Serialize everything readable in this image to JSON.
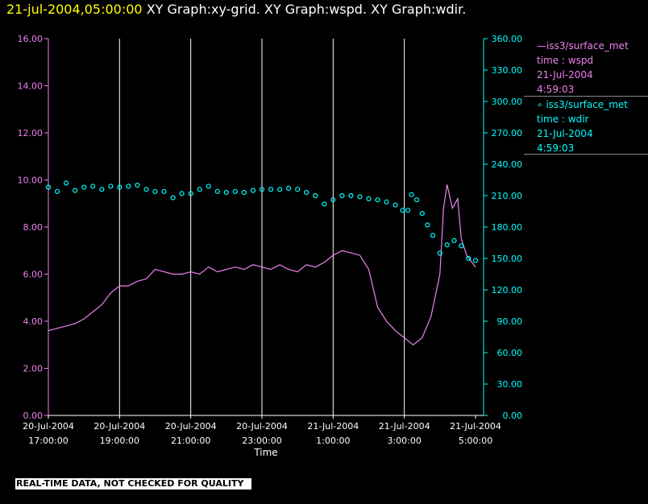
{
  "header": {
    "timestamp": "21-jul-2004,05:00:00",
    "graphs": "XY Graph:xy-grid.  XY Graph:wspd.  XY Graph:wdir."
  },
  "legend": {
    "series1": {
      "name": "iss3/surface_met",
      "line1": "time : wspd",
      "line2": "21-Jul-2004",
      "line3": "4:59:03"
    },
    "series2": {
      "name": "iss3/surface_met",
      "line1": "time : wdir",
      "line2": "21-Jul-2004",
      "line3": "4:59:03"
    }
  },
  "notice": "REAL-TIME DATA, NOT CHECKED FOR QUALITY",
  "colors": {
    "wspd": "#ee82ee",
    "wdir": "#00ffff",
    "grid": "#ffffff",
    "title_timestamp": "#ffff00"
  },
  "chart_data": {
    "type": "line",
    "xlabel": "Time",
    "x_tick_labels": [
      [
        "20-Jul-2004",
        "17:00:00"
      ],
      [
        "20-Jul-2004",
        "19:00:00"
      ],
      [
        "20-Jul-2004",
        "21:00:00"
      ],
      [
        "20-Jul-2004",
        "23:00:00"
      ],
      [
        "21-Jul-2004",
        "1:00:00"
      ],
      [
        "21-Jul-2004",
        "3:00:00"
      ],
      [
        "21-Jul-2004",
        "5:00:00"
      ]
    ],
    "xlim_hours": [
      17,
      29
    ],
    "y_left": {
      "ylim": [
        0,
        16
      ],
      "ticks": [
        "0.00",
        "2.00",
        "4.00",
        "6.00",
        "8.00",
        "10.00",
        "12.00",
        "14.00",
        "16.00"
      ]
    },
    "y_right": {
      "ylim": [
        0,
        360
      ],
      "ticks": [
        "0.00",
        "30.00",
        "60.00",
        "90.00",
        "120.00",
        "150.00",
        "180.00",
        "210.00",
        "240.00",
        "270.00",
        "300.00",
        "330.00",
        "360.00"
      ]
    },
    "grid": "vertical lines at each 2-hour tick",
    "series": [
      {
        "name": "iss3/surface_met time : wspd",
        "style": "line",
        "axis": "left",
        "points": [
          [
            17.0,
            3.6
          ],
          [
            17.25,
            3.7
          ],
          [
            17.5,
            3.8
          ],
          [
            17.75,
            3.9
          ],
          [
            18.0,
            4.1
          ],
          [
            18.25,
            4.4
          ],
          [
            18.5,
            4.7
          ],
          [
            18.75,
            5.2
          ],
          [
            19.0,
            5.5
          ],
          [
            19.25,
            5.5
          ],
          [
            19.5,
            5.7
          ],
          [
            19.75,
            5.8
          ],
          [
            20.0,
            6.2
          ],
          [
            20.25,
            6.1
          ],
          [
            20.5,
            6.0
          ],
          [
            20.75,
            6.0
          ],
          [
            21.0,
            6.1
          ],
          [
            21.25,
            6.0
          ],
          [
            21.5,
            6.3
          ],
          [
            21.75,
            6.1
          ],
          [
            22.0,
            6.2
          ],
          [
            22.25,
            6.3
          ],
          [
            22.5,
            6.2
          ],
          [
            22.75,
            6.4
          ],
          [
            23.0,
            6.3
          ],
          [
            23.25,
            6.2
          ],
          [
            23.5,
            6.4
          ],
          [
            23.75,
            6.2
          ],
          [
            24.0,
            6.1
          ],
          [
            24.25,
            6.4
          ],
          [
            24.5,
            6.3
          ],
          [
            24.75,
            6.5
          ],
          [
            25.0,
            6.8
          ],
          [
            25.25,
            7.0
          ],
          [
            25.5,
            6.9
          ],
          [
            25.75,
            6.8
          ],
          [
            26.0,
            6.2
          ],
          [
            26.25,
            4.6
          ],
          [
            26.5,
            4.0
          ],
          [
            26.75,
            3.6
          ],
          [
            27.0,
            3.3
          ],
          [
            27.25,
            3.0
          ],
          [
            27.5,
            3.3
          ],
          [
            27.75,
            4.2
          ],
          [
            28.0,
            6.0
          ],
          [
            28.1,
            8.8
          ],
          [
            28.2,
            9.8
          ],
          [
            28.35,
            8.8
          ],
          [
            28.5,
            9.2
          ],
          [
            28.6,
            7.5
          ],
          [
            28.75,
            6.8
          ],
          [
            28.9,
            6.5
          ],
          [
            29.0,
            6.3
          ]
        ]
      },
      {
        "name": "iss3/surface_met time : wdir",
        "style": "markers",
        "axis": "right",
        "points": [
          [
            17.0,
            218
          ],
          [
            17.25,
            214
          ],
          [
            17.5,
            222
          ],
          [
            17.75,
            215
          ],
          [
            18.0,
            218
          ],
          [
            18.25,
            219
          ],
          [
            18.5,
            216
          ],
          [
            18.75,
            219
          ],
          [
            19.0,
            218
          ],
          [
            19.25,
            219
          ],
          [
            19.5,
            220
          ],
          [
            19.75,
            216
          ],
          [
            20.0,
            214
          ],
          [
            20.25,
            214
          ],
          [
            20.5,
            208
          ],
          [
            20.75,
            212
          ],
          [
            21.0,
            212
          ],
          [
            21.25,
            216
          ],
          [
            21.5,
            219
          ],
          [
            21.75,
            214
          ],
          [
            22.0,
            213
          ],
          [
            22.25,
            214
          ],
          [
            22.5,
            213
          ],
          [
            22.75,
            215
          ],
          [
            23.0,
            216
          ],
          [
            23.25,
            216
          ],
          [
            23.5,
            216
          ],
          [
            23.75,
            217
          ],
          [
            24.0,
            216
          ],
          [
            24.25,
            213
          ],
          [
            24.5,
            210
          ],
          [
            24.75,
            202
          ],
          [
            25.0,
            206
          ],
          [
            25.25,
            210
          ],
          [
            25.5,
            210
          ],
          [
            25.75,
            209
          ],
          [
            26.0,
            207
          ],
          [
            26.25,
            206
          ],
          [
            26.5,
            204
          ],
          [
            26.75,
            201
          ],
          [
            26.95,
            196
          ],
          [
            27.1,
            196
          ],
          [
            27.2,
            211
          ],
          [
            27.35,
            206
          ],
          [
            27.5,
            193
          ],
          [
            27.65,
            182
          ],
          [
            27.8,
            172
          ],
          [
            28.0,
            155
          ],
          [
            28.2,
            163
          ],
          [
            28.4,
            167
          ],
          [
            28.6,
            162
          ],
          [
            28.8,
            150
          ],
          [
            29.0,
            148
          ]
        ]
      }
    ]
  }
}
